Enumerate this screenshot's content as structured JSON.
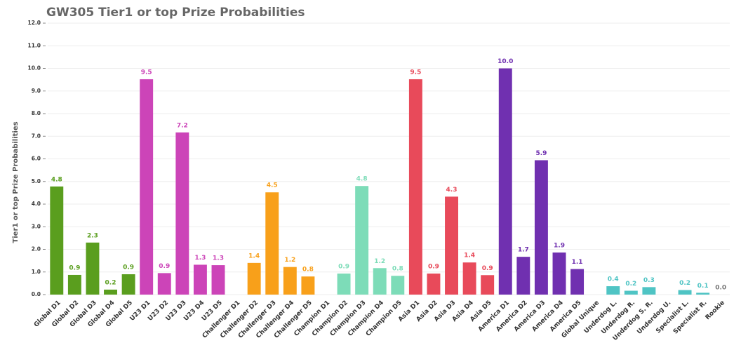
{
  "chart_data": {
    "type": "bar",
    "title": "GW305 Tier1 or top Prize Probabilities",
    "y_label": "Tier1 or top Prize Probabilities",
    "categories": [
      "Global D1",
      "Global D2",
      "Global D3",
      "Global D4",
      "Global D5",
      "U23 D1",
      "U23 D2",
      "U23 D3",
      "U23 D4",
      "U23 D5",
      "Challenger D1",
      "Challenger D2",
      "Challenger D3",
      "Challenger D4",
      "Challenger D5",
      "Champion D1",
      "Champion D2",
      "Champion D3",
      "Champion D4",
      "Champion D5",
      "Asia D1",
      "Asia D2",
      "Asia D3",
      "Asia D4",
      "Asia D5",
      "America D1",
      "America D2",
      "America D3",
      "America D4",
      "America D5",
      "Global Unique",
      "Underdog L.",
      "Underdog R.",
      "Underdog S. R.",
      "Underdog U.",
      "Specialist L.",
      "Specialist R.",
      "Rookie"
    ],
    "values": [
      4.78,
      0.87,
      2.3,
      0.22,
      0.9,
      9.52,
      0.95,
      7.17,
      1.32,
      1.3,
      null,
      1.4,
      4.52,
      1.22,
      0.8,
      null,
      0.93,
      4.8,
      1.17,
      0.83,
      9.52,
      0.93,
      4.33,
      1.42,
      0.86,
      10.0,
      1.67,
      5.94,
      1.86,
      1.13,
      null,
      0.37,
      0.17,
      0.33,
      null,
      0.2,
      0.08,
      0
    ],
    "value_labels": [
      "4.8",
      "0.9",
      "2.3",
      "0.2",
      "0.9",
      "9.5",
      "0.9",
      "7.2",
      "1.3",
      "1.3",
      null,
      "1.4",
      "4.5",
      "1.2",
      "0.8",
      null,
      "0.9",
      "4.8",
      "1.2",
      "0.8",
      "9.5",
      "0.9",
      "4.3",
      "1.4",
      "0.9",
      "10.0",
      "1.7",
      "5.9",
      "1.9",
      "1.1",
      null,
      "0.4",
      "0.2",
      "0.3",
      null,
      "0.2",
      "0.1",
      "0.0"
    ],
    "colors": [
      "#5a9e1e",
      "#5a9e1e",
      "#5a9e1e",
      "#5a9e1e",
      "#5a9e1e",
      "#cc44b8",
      "#cc44b8",
      "#cc44b8",
      "#cc44b8",
      "#cc44b8",
      "#f8a01a",
      "#f8a01a",
      "#f8a01a",
      "#f8a01a",
      "#f8a01a",
      "#7ddcb8",
      "#7ddcb8",
      "#7ddcb8",
      "#7ddcb8",
      "#7ddcb8",
      "#e84a5a",
      "#e84a5a",
      "#e84a5a",
      "#e84a5a",
      "#e84a5a",
      "#7030b0",
      "#7030b0",
      "#7030b0",
      "#7030b0",
      "#7030b0",
      "#4fc4c4",
      "#4fc4c4",
      "#4fc4c4",
      "#4fc4c4",
      "#4fc4c4",
      "#4fc4c4",
      "#4fc4c4",
      "#777777"
    ],
    "ylim": [
      0,
      12
    ],
    "yticks": [
      {
        "value": 0,
        "label": "0.0"
      },
      {
        "value": 1,
        "label": "1.0"
      },
      {
        "value": 2,
        "label": "2.0"
      },
      {
        "value": 3,
        "label": "3.0"
      },
      {
        "value": 4,
        "label": "4.0"
      },
      {
        "value": 5,
        "label": "5.0"
      },
      {
        "value": 6,
        "label": "6.0"
      },
      {
        "value": 7,
        "label": "7.0"
      },
      {
        "value": 8,
        "label": "8.0"
      },
      {
        "value": 9,
        "label": "9.0"
      },
      {
        "value": 10,
        "label": "10.0"
      },
      {
        "value": 11,
        "label": "11.0"
      },
      {
        "value": 12,
        "label": "12.0"
      }
    ],
    "grid": true
  }
}
